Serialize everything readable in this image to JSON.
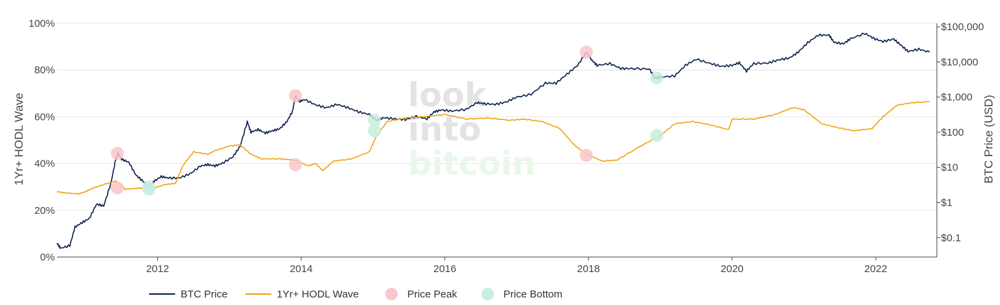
{
  "watermark": {
    "line1": "look",
    "line2": "into",
    "line3": "bitcoin"
  },
  "chart_data": {
    "type": "line",
    "title": "",
    "xlabel": "",
    "ylabel_left": "1Yr+ HODL Wave",
    "ylabel_right": "BTC Price (USD)",
    "x_range": [
      2010.6,
      2022.85
    ],
    "x_ticks": [
      {
        "value": 2012,
        "label": "2012"
      },
      {
        "value": 2014,
        "label": "2014"
      },
      {
        "value": 2016,
        "label": "2016"
      },
      {
        "value": 2018,
        "label": "2018"
      },
      {
        "value": 2020,
        "label": "2020"
      },
      {
        "value": 2022,
        "label": "2022"
      }
    ],
    "y_left": {
      "range": [
        0,
        100
      ],
      "ticks": [
        {
          "value": 0,
          "label": "0%"
        },
        {
          "value": 20,
          "label": "20%"
        },
        {
          "value": 40,
          "label": "40%"
        },
        {
          "value": 60,
          "label": "60%"
        },
        {
          "value": 80,
          "label": "80%"
        },
        {
          "value": 100,
          "label": "100%"
        }
      ]
    },
    "y_right": {
      "scale": "log",
      "range_log10": [
        -1.55,
        5.1
      ],
      "ticks": [
        {
          "value": 0.1,
          "label": "$0.1"
        },
        {
          "value": 1,
          "label": "$1"
        },
        {
          "value": 10,
          "label": "$10"
        },
        {
          "value": 100,
          "label": "$100"
        },
        {
          "value": 1000,
          "label": "$1,000"
        },
        {
          "value": 10000,
          "label": "$10,000"
        },
        {
          "value": 100000,
          "label": "$100,000"
        }
      ]
    },
    "legend": {
      "position": "bottom",
      "items": [
        {
          "label": "BTC Price",
          "type": "line",
          "color": "#0b1f4d"
        },
        {
          "label": "1Yr+ HODL Wave",
          "type": "line",
          "color": "#f2a30f"
        },
        {
          "label": "Price Peak",
          "type": "marker",
          "color": "#f9c6cb"
        },
        {
          "label": "Price Bottom",
          "type": "marker",
          "color": "#c7efdf"
        }
      ]
    },
    "series": [
      {
        "name": "BTC Price",
        "axis": "right",
        "color": "#0b1f4d",
        "points": [
          [
            2010.6,
            0.07
          ],
          [
            2010.65,
            0.05
          ],
          [
            2010.78,
            0.06
          ],
          [
            2010.85,
            0.2
          ],
          [
            2010.95,
            0.27
          ],
          [
            2011.05,
            0.35
          ],
          [
            2011.15,
            0.9
          ],
          [
            2011.25,
            0.8
          ],
          [
            2011.35,
            3.5
          ],
          [
            2011.42,
            18
          ],
          [
            2011.45,
            25
          ],
          [
            2011.5,
            17
          ],
          [
            2011.6,
            14
          ],
          [
            2011.7,
            6
          ],
          [
            2011.8,
            4
          ],
          [
            2011.88,
            2.8
          ],
          [
            2011.95,
            4
          ],
          [
            2012.05,
            5.5
          ],
          [
            2012.15,
            5.0
          ],
          [
            2012.3,
            5.0
          ],
          [
            2012.45,
            6.5
          ],
          [
            2012.6,
            11
          ],
          [
            2012.7,
            12
          ],
          [
            2012.8,
            11
          ],
          [
            2012.9,
            13
          ],
          [
            2013.05,
            20
          ],
          [
            2013.15,
            40
          ],
          [
            2013.25,
            200
          ],
          [
            2013.3,
            100
          ],
          [
            2013.4,
            120
          ],
          [
            2013.5,
            95
          ],
          [
            2013.6,
            110
          ],
          [
            2013.7,
            125
          ],
          [
            2013.8,
            200
          ],
          [
            2013.88,
            400
          ],
          [
            2013.92,
            1100
          ],
          [
            2013.97,
            750
          ],
          [
            2014.05,
            850
          ],
          [
            2014.2,
            600
          ],
          [
            2014.35,
            500
          ],
          [
            2014.5,
            620
          ],
          [
            2014.65,
            500
          ],
          [
            2014.8,
            380
          ],
          [
            2014.95,
            320
          ],
          [
            2015.05,
            220
          ],
          [
            2015.15,
            260
          ],
          [
            2015.3,
            240
          ],
          [
            2015.45,
            230
          ],
          [
            2015.6,
            280
          ],
          [
            2015.75,
            240
          ],
          [
            2015.85,
            380
          ],
          [
            2015.95,
            430
          ],
          [
            2016.1,
            400
          ],
          [
            2016.3,
            450
          ],
          [
            2016.45,
            700
          ],
          [
            2016.55,
            650
          ],
          [
            2016.7,
            620
          ],
          [
            2016.85,
            720
          ],
          [
            2017.0,
            1000
          ],
          [
            2017.2,
            1200
          ],
          [
            2017.4,
            2500
          ],
          [
            2017.55,
            2500
          ],
          [
            2017.7,
            4500
          ],
          [
            2017.85,
            8000
          ],
          [
            2017.97,
            19000
          ],
          [
            2018.05,
            11000
          ],
          [
            2018.12,
            8000
          ],
          [
            2018.3,
            9000
          ],
          [
            2018.45,
            6500
          ],
          [
            2018.6,
            6500
          ],
          [
            2018.85,
            6300
          ],
          [
            2018.92,
            3500
          ],
          [
            2019.0,
            3700
          ],
          [
            2019.2,
            4000
          ],
          [
            2019.35,
            8000
          ],
          [
            2019.5,
            12000
          ],
          [
            2019.7,
            9000
          ],
          [
            2019.85,
            7500
          ],
          [
            2020.0,
            8000
          ],
          [
            2020.1,
            9500
          ],
          [
            2020.2,
            5500
          ],
          [
            2020.3,
            9000
          ],
          [
            2020.5,
            9300
          ],
          [
            2020.65,
            11500
          ],
          [
            2020.8,
            13000
          ],
          [
            2020.92,
            19000
          ],
          [
            2021.05,
            35000
          ],
          [
            2021.2,
            58000
          ],
          [
            2021.35,
            58000
          ],
          [
            2021.42,
            36000
          ],
          [
            2021.55,
            33000
          ],
          [
            2021.65,
            46000
          ],
          [
            2021.85,
            65000
          ],
          [
            2021.97,
            47000
          ],
          [
            2022.1,
            38000
          ],
          [
            2022.25,
            45000
          ],
          [
            2022.35,
            30000
          ],
          [
            2022.45,
            20000
          ],
          [
            2022.6,
            23000
          ],
          [
            2022.75,
            19000
          ]
        ]
      },
      {
        "name": "1Yr+ HODL Wave",
        "axis": "left",
        "color": "#f2a30f",
        "points": [
          [
            2010.6,
            28
          ],
          [
            2010.7,
            27.5
          ],
          [
            2010.9,
            27
          ],
          [
            2011.0,
            28
          ],
          [
            2011.1,
            29.5
          ],
          [
            2011.3,
            31.5
          ],
          [
            2011.42,
            32.5
          ],
          [
            2011.55,
            29
          ],
          [
            2011.75,
            29.5
          ],
          [
            2011.9,
            29
          ],
          [
            2012.1,
            31
          ],
          [
            2012.25,
            31.5
          ],
          [
            2012.35,
            39
          ],
          [
            2012.5,
            45
          ],
          [
            2012.7,
            44
          ],
          [
            2012.8,
            45.5
          ],
          [
            2013.0,
            47.5
          ],
          [
            2013.15,
            48
          ],
          [
            2013.3,
            44
          ],
          [
            2013.45,
            42
          ],
          [
            2013.7,
            42
          ],
          [
            2013.9,
            41.5
          ],
          [
            2014.1,
            39
          ],
          [
            2014.2,
            40
          ],
          [
            2014.3,
            37
          ],
          [
            2014.45,
            41
          ],
          [
            2014.7,
            42
          ],
          [
            2014.95,
            45
          ],
          [
            2015.05,
            52
          ],
          [
            2015.2,
            58
          ],
          [
            2015.45,
            59.5
          ],
          [
            2015.7,
            60
          ],
          [
            2016.0,
            61
          ],
          [
            2016.3,
            59
          ],
          [
            2016.6,
            59.5
          ],
          [
            2016.9,
            58.5
          ],
          [
            2017.1,
            59
          ],
          [
            2017.35,
            58
          ],
          [
            2017.6,
            55
          ],
          [
            2017.8,
            48
          ],
          [
            2017.97,
            44
          ],
          [
            2018.2,
            41
          ],
          [
            2018.4,
            41.5
          ],
          [
            2018.7,
            47
          ],
          [
            2019.0,
            52
          ],
          [
            2019.2,
            57
          ],
          [
            2019.45,
            58
          ],
          [
            2019.7,
            56.5
          ],
          [
            2019.95,
            54.5
          ],
          [
            2020.0,
            59
          ],
          [
            2020.3,
            59
          ],
          [
            2020.6,
            61
          ],
          [
            2020.85,
            64
          ],
          [
            2021.0,
            63
          ],
          [
            2021.25,
            57
          ],
          [
            2021.45,
            55.5
          ],
          [
            2021.7,
            54
          ],
          [
            2021.95,
            55
          ],
          [
            2022.1,
            60
          ],
          [
            2022.3,
            65
          ],
          [
            2022.5,
            66
          ],
          [
            2022.75,
            66.5
          ]
        ]
      }
    ],
    "markers": [
      {
        "name": "Price Peak",
        "x": 2011.44,
        "axis": "right",
        "y": 25,
        "color": "#f9c6cb"
      },
      {
        "name": "Price Peak",
        "x": 2011.44,
        "axis": "left",
        "y": 29.5,
        "color": "#f9c6cb"
      },
      {
        "name": "Price Peak",
        "x": 2013.92,
        "axis": "right",
        "y": 1100,
        "color": "#f9c6cb"
      },
      {
        "name": "Price Peak",
        "x": 2013.92,
        "axis": "left",
        "y": 39.5,
        "color": "#f9c6cb"
      },
      {
        "name": "Price Peak",
        "x": 2017.97,
        "axis": "right",
        "y": 19000,
        "color": "#f9c6cb"
      },
      {
        "name": "Price Peak",
        "x": 2017.97,
        "axis": "left",
        "y": 43.5,
        "color": "#f9c6cb"
      },
      {
        "name": "Price Bottom",
        "x": 2011.88,
        "axis": "right",
        "y": 2.8,
        "color": "#c7efdf"
      },
      {
        "name": "Price Bottom",
        "x": 2011.88,
        "axis": "left",
        "y": 29,
        "color": "#c7efdf"
      },
      {
        "name": "Price Bottom",
        "x": 2015.02,
        "axis": "right",
        "y": 220,
        "color": "#c7efdf"
      },
      {
        "name": "Price Bottom",
        "x": 2015.02,
        "axis": "left",
        "y": 54,
        "color": "#c7efdf"
      },
      {
        "name": "Price Bottom",
        "x": 2018.95,
        "axis": "right",
        "y": 3500,
        "color": "#c7efdf"
      },
      {
        "name": "Price Bottom",
        "x": 2018.95,
        "axis": "left",
        "y": 52,
        "color": "#c7efdf"
      }
    ]
  }
}
